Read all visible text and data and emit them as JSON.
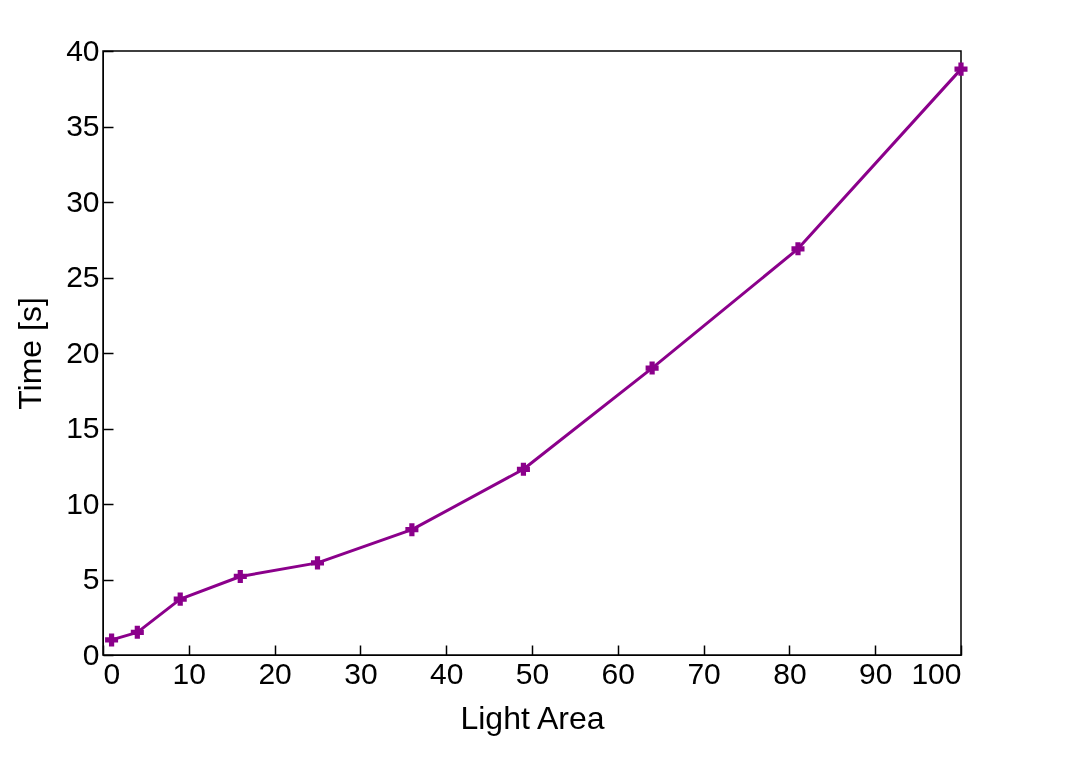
{
  "chart_data": {
    "type": "line",
    "xlabel": "Light Area",
    "ylabel": "Time [s]",
    "x": [
      1,
      4,
      9,
      16,
      25,
      36,
      49,
      64,
      81,
      100
    ],
    "series": [
      {
        "color": "#8b008b",
        "values": [
          1.0,
          1.5,
          3.7,
          5.2,
          6.1,
          8.3,
          12.3,
          19.0,
          26.9,
          38.8
        ]
      }
    ],
    "xlim": [
      0,
      100
    ],
    "xticks": [
      0,
      10,
      20,
      30,
      40,
      50,
      60,
      70,
      80,
      90,
      100
    ],
    "ylim": [
      0,
      40
    ],
    "yticks": [
      0,
      5,
      10,
      15,
      20,
      25,
      30,
      35,
      40
    ],
    "grid": false,
    "legend": false,
    "marker": "cross",
    "line_style": "solid"
  }
}
